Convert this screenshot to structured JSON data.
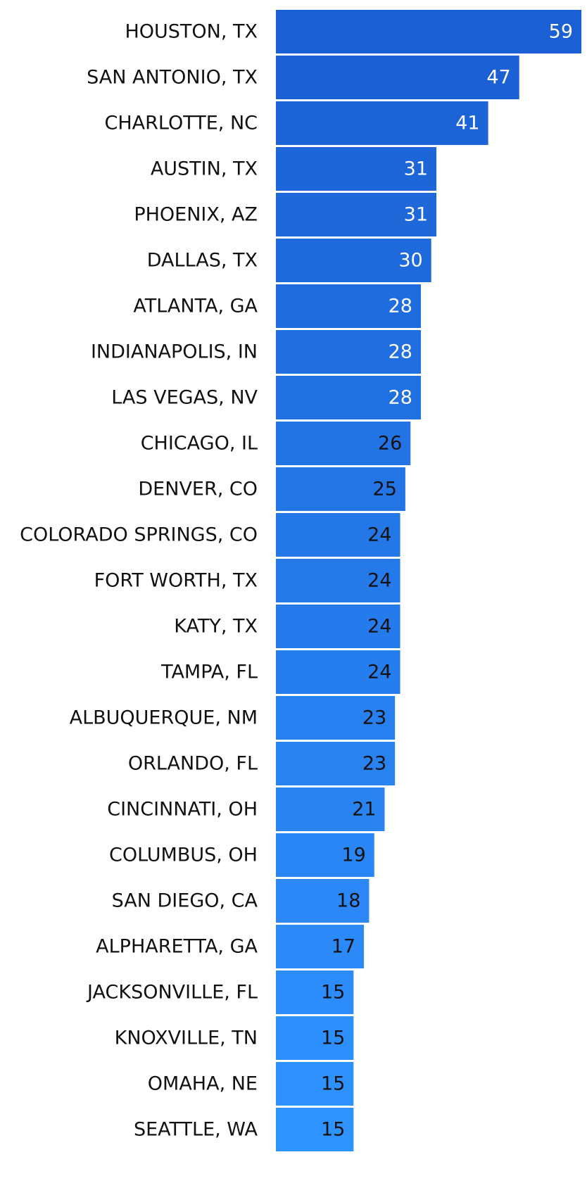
{
  "chart_data": {
    "type": "hbar",
    "categories": [
      "HOUSTON, TX",
      "SAN ANTONIO, TX",
      "CHARLOTTE, NC",
      "AUSTIN, TX",
      "PHOENIX, AZ",
      "DALLAS, TX",
      "ATLANTA, GA",
      "INDIANAPOLIS, IN",
      "LAS VEGAS, NV",
      "CHICAGO, IL",
      "DENVER, CO",
      "COLORADO SPRINGS, CO",
      "FORT WORTH, TX",
      "KATY, TX",
      "TAMPA, FL",
      "ALBUQUERQUE, NM",
      "ORLANDO, FL",
      "CINCINNATI, OH",
      "COLUMBUS, OH",
      "SAN DIEGO, CA",
      "ALPHARETTA, GA",
      "JACKSONVILLE, FL",
      "KNOXVILLE, TN",
      "OMAHA, NE",
      "SEATTLE, WA"
    ],
    "values": [
      59,
      47,
      41,
      31,
      31,
      30,
      28,
      28,
      28,
      26,
      25,
      24,
      24,
      24,
      24,
      23,
      23,
      21,
      19,
      18,
      17,
      15,
      15,
      15,
      15
    ],
    "colors": [
      "#1a5fd3",
      "#2f93ff"
    ],
    "value_label_colors": [
      "#ffffff",
      "#ffffff",
      "#ffffff",
      "#ffffff",
      "#ffffff",
      "#ffffff",
      "#ffffff",
      "#ffffff",
      "#ffffff",
      "#111111",
      "#111111",
      "#111111",
      "#111111",
      "#111111",
      "#111111",
      "#111111",
      "#111111",
      "#111111",
      "#111111",
      "#111111",
      "#111111",
      "#111111",
      "#111111",
      "#111111",
      "#111111"
    ]
  }
}
